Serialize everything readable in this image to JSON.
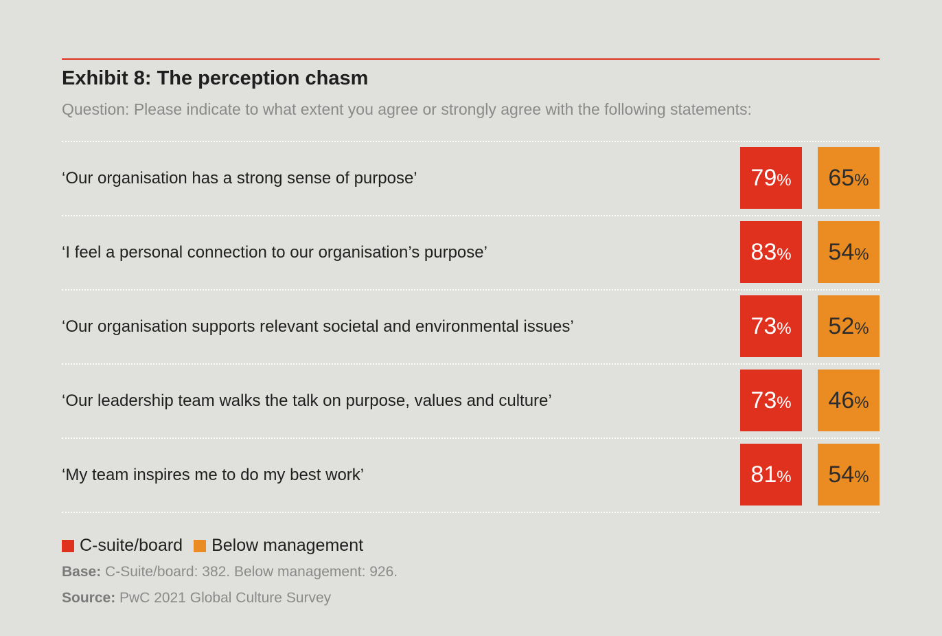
{
  "title": "Exhibit 8: The perception chasm",
  "subtitle": "Question: Please indicate to what extent you agree or strongly agree with the following statements:",
  "chart_data": {
    "type": "table",
    "categories": [
      "‘Our organisation has a strong sense of purpose’",
      "‘I feel a personal connection to our organisation’s purpose’",
      "‘Our organisation supports relevant societal and environmental issues’",
      "‘Our leadership team walks the talk on purpose, values and culture’",
      "‘My team inspires me to do my best work’"
    ],
    "unit": "%",
    "series": [
      {
        "name": "C-suite/board",
        "color": "#e0301e",
        "values": [
          79,
          83,
          73,
          73,
          81
        ]
      },
      {
        "name": "Below management",
        "color": "#eb8c22",
        "values": [
          65,
          54,
          52,
          46,
          54
        ]
      }
    ]
  },
  "notes": {
    "base_label": "Base:",
    "base_text": " C-Suite/board: 382. Below management: 926.",
    "source_label": "Source:",
    "source_text": " PwC 2021 Global Culture Survey"
  }
}
